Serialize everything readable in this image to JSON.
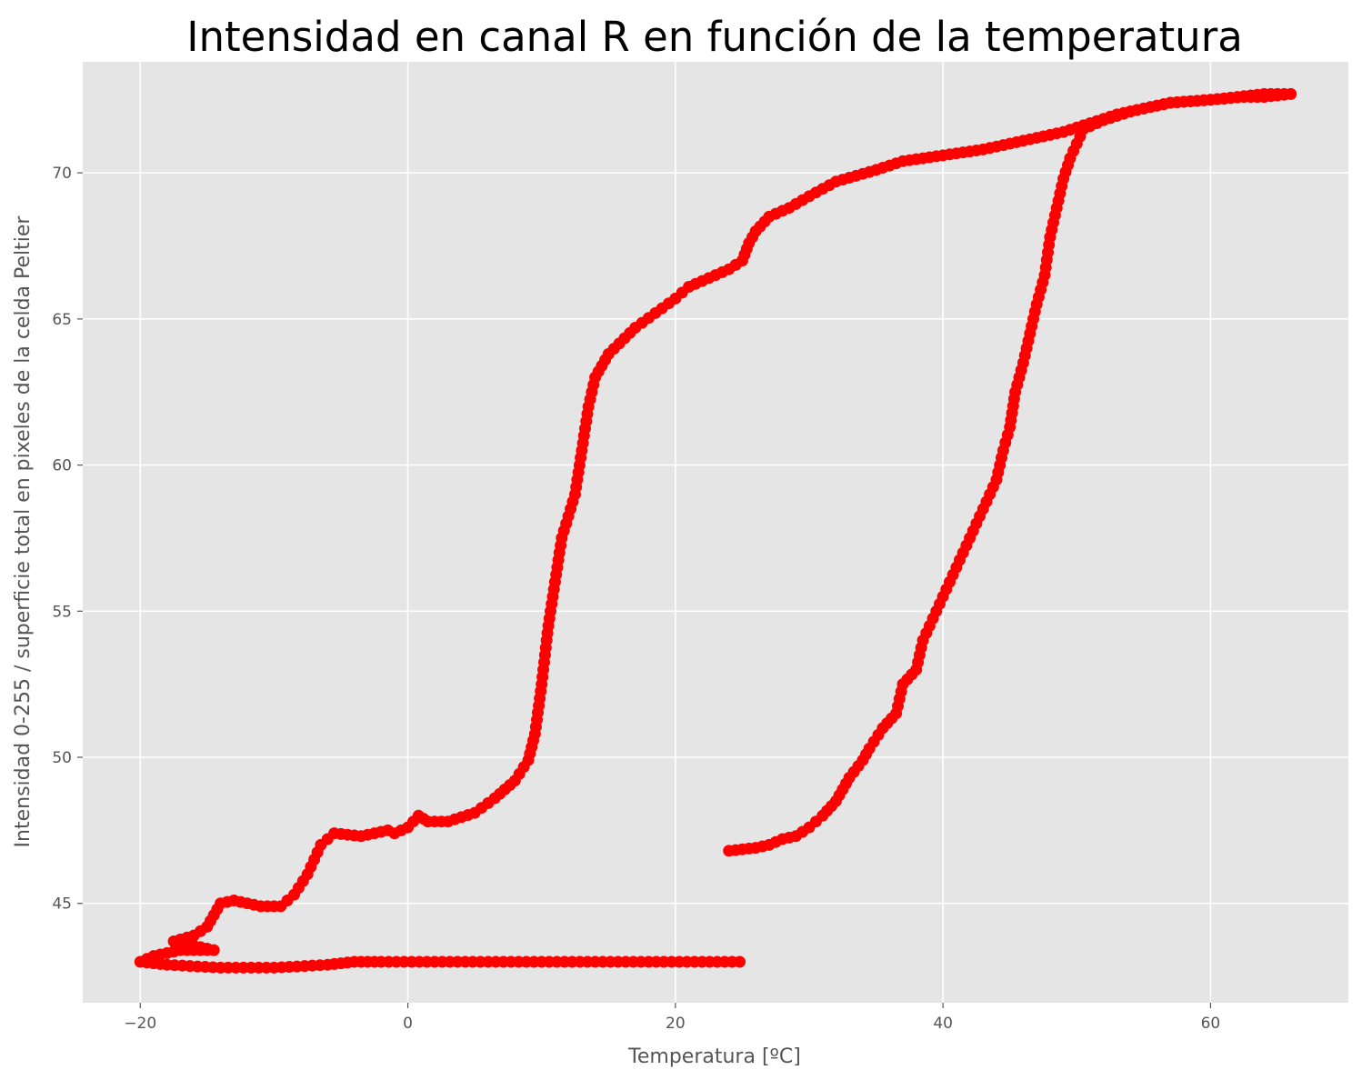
{
  "chart_data": {
    "type": "scatter",
    "title": "Intensidad en canal R en función de la temperatura",
    "xlabel": "Temperatura [ºC]",
    "ylabel": "Intensidad 0-255 / superficie total en pixeles de la celda Peltier",
    "xlim": [
      -24.3,
      70.3
    ],
    "ylim": [
      41.6,
      73.8
    ],
    "xticks": [
      -20,
      0,
      20,
      40,
      60
    ],
    "yticks": [
      45,
      50,
      55,
      60,
      65,
      70
    ],
    "grid": true,
    "legend": "none",
    "colors": {
      "background": "#E5E5E5",
      "grid": "#FFFFFF",
      "series": "#FF0000"
    },
    "series": [
      {
        "points": [
          [
            24.8,
            43.0
          ],
          [
            22.0,
            43.0
          ],
          [
            18.0,
            43.0
          ],
          [
            14.0,
            43.0
          ],
          [
            10.0,
            43.0
          ],
          [
            6.0,
            43.0
          ],
          [
            2.0,
            43.0
          ],
          [
            -2.0,
            43.0
          ],
          [
            -4.0,
            43.0
          ],
          [
            -6.0,
            42.9
          ],
          [
            -10.0,
            42.8
          ],
          [
            -14.0,
            42.8
          ],
          [
            -18.0,
            42.9
          ],
          [
            -20.0,
            43.0
          ],
          [
            -19.0,
            43.2
          ],
          [
            -17.0,
            43.4
          ],
          [
            -15.0,
            43.4
          ],
          [
            -14.5,
            43.4
          ],
          [
            -17.5,
            43.7
          ],
          [
            -16.0,
            43.9
          ],
          [
            -15.0,
            44.2
          ],
          [
            -14.5,
            44.6
          ],
          [
            -14.0,
            45.0
          ],
          [
            -13.0,
            45.1
          ],
          [
            -11.0,
            44.9
          ],
          [
            -9.5,
            44.9
          ],
          [
            -8.5,
            45.3
          ],
          [
            -7.5,
            46.0
          ],
          [
            -6.5,
            47.0
          ],
          [
            -5.5,
            47.4
          ],
          [
            -3.5,
            47.3
          ],
          [
            -1.5,
            47.5
          ],
          [
            -1.0,
            47.4
          ],
          [
            0.0,
            47.6
          ],
          [
            0.8,
            48.0
          ],
          [
            1.5,
            47.8
          ],
          [
            3.0,
            47.8
          ],
          [
            5.0,
            48.1
          ],
          [
            6.5,
            48.6
          ],
          [
            8.0,
            49.2
          ],
          [
            9.0,
            49.9
          ],
          [
            9.5,
            50.8
          ],
          [
            10.0,
            52.5
          ],
          [
            10.5,
            54.5
          ],
          [
            11.0,
            56.0
          ],
          [
            11.5,
            57.5
          ],
          [
            12.5,
            59.0
          ],
          [
            13.0,
            60.5
          ],
          [
            13.5,
            62.0
          ],
          [
            14.0,
            63.0
          ],
          [
            15.0,
            63.8
          ],
          [
            17.0,
            64.7
          ],
          [
            18.5,
            65.2
          ],
          [
            20.0,
            65.7
          ],
          [
            21.0,
            66.1
          ],
          [
            23.0,
            66.5
          ],
          [
            24.0,
            66.7
          ],
          [
            25.0,
            67.0
          ],
          [
            25.5,
            67.6
          ],
          [
            26.0,
            68.0
          ],
          [
            27.0,
            68.5
          ],
          [
            28.5,
            68.8
          ],
          [
            30.0,
            69.2
          ],
          [
            32.0,
            69.7
          ],
          [
            35.0,
            70.1
          ],
          [
            37.0,
            70.4
          ],
          [
            40.0,
            70.6
          ],
          [
            43.0,
            70.8
          ],
          [
            46.0,
            71.1
          ],
          [
            49.0,
            71.4
          ],
          [
            51.0,
            71.7
          ],
          [
            53.0,
            72.0
          ],
          [
            55.0,
            72.2
          ],
          [
            57.0,
            72.4
          ],
          [
            60.0,
            72.5
          ],
          [
            62.0,
            72.6
          ],
          [
            64.0,
            72.7
          ],
          [
            66.0,
            72.7
          ],
          [
            64.0,
            72.6
          ],
          [
            62.5,
            72.6
          ],
          [
            60.0,
            72.5
          ],
          [
            57.0,
            72.4
          ],
          [
            54.0,
            72.1
          ],
          [
            52.0,
            71.8
          ],
          [
            50.5,
            71.5
          ],
          [
            50.0,
            71.0
          ],
          [
            49.5,
            70.5
          ],
          [
            49.0,
            69.8
          ],
          [
            48.5,
            68.8
          ],
          [
            48.0,
            67.8
          ],
          [
            47.6,
            66.5
          ],
          [
            47.0,
            65.5
          ],
          [
            46.5,
            64.5
          ],
          [
            46.0,
            63.5
          ],
          [
            45.4,
            62.5
          ],
          [
            45.0,
            61.3
          ],
          [
            44.5,
            60.5
          ],
          [
            44.0,
            59.5
          ],
          [
            43.0,
            58.5
          ],
          [
            42.0,
            57.5
          ],
          [
            41.5,
            57.0
          ],
          [
            40.5,
            56.0
          ],
          [
            39.5,
            55.0
          ],
          [
            38.5,
            54.0
          ],
          [
            38.0,
            53.0
          ],
          [
            37.0,
            52.5
          ],
          [
            36.5,
            51.5
          ],
          [
            35.5,
            51.0
          ],
          [
            34.5,
            50.3
          ],
          [
            34.0,
            49.9
          ],
          [
            33.0,
            49.3
          ],
          [
            32.0,
            48.5
          ],
          [
            31.0,
            48.0
          ],
          [
            30.0,
            47.6
          ],
          [
            29.0,
            47.3
          ],
          [
            28.0,
            47.2
          ],
          [
            27.0,
            47.0
          ],
          [
            26.0,
            46.9
          ],
          [
            24.0,
            46.8
          ]
        ]
      }
    ]
  }
}
